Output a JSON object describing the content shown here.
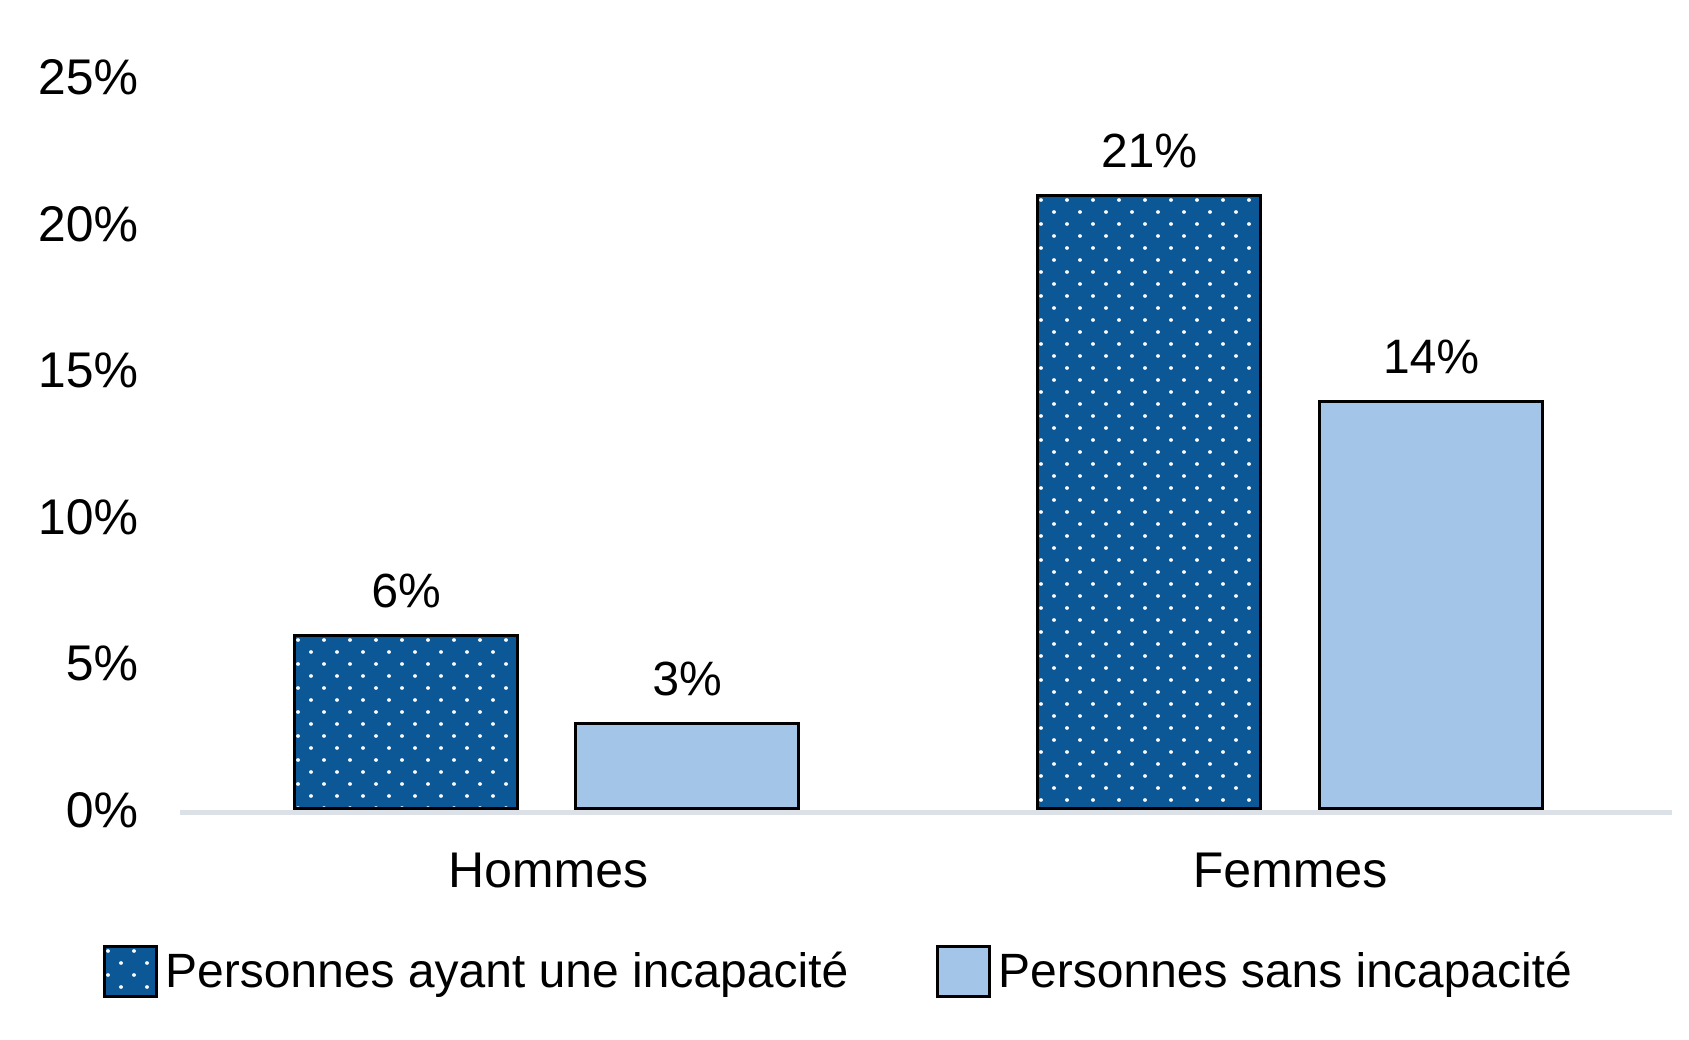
{
  "chart_data": {
    "type": "bar",
    "title": "",
    "xlabel": "",
    "ylabel": "",
    "categories": [
      "Hommes",
      "Femmes"
    ],
    "series": [
      {
        "name": "Personnes ayant une incapacité",
        "values": [
          6,
          21
        ],
        "labels": [
          "6%",
          "21%"
        ],
        "color": "#0c5795",
        "fill_pattern": "white-square-dots",
        "border_color": "#000000"
      },
      {
        "name": "Personnes sans incapacité",
        "values": [
          3,
          14
        ],
        "labels": [
          "3%",
          "14%"
        ],
        "color": "#a3c6e8",
        "fill_pattern": "solid",
        "border_color": "#000000"
      }
    ],
    "ylim": [
      0,
      25
    ],
    "ytick_labels": [
      "25%",
      "20%",
      "15%",
      "10%",
      "5%",
      "0%"
    ],
    "grid": false,
    "legend_position": "bottom",
    "axis_line_color": "#dce1e8",
    "text_color": "#000000"
  }
}
